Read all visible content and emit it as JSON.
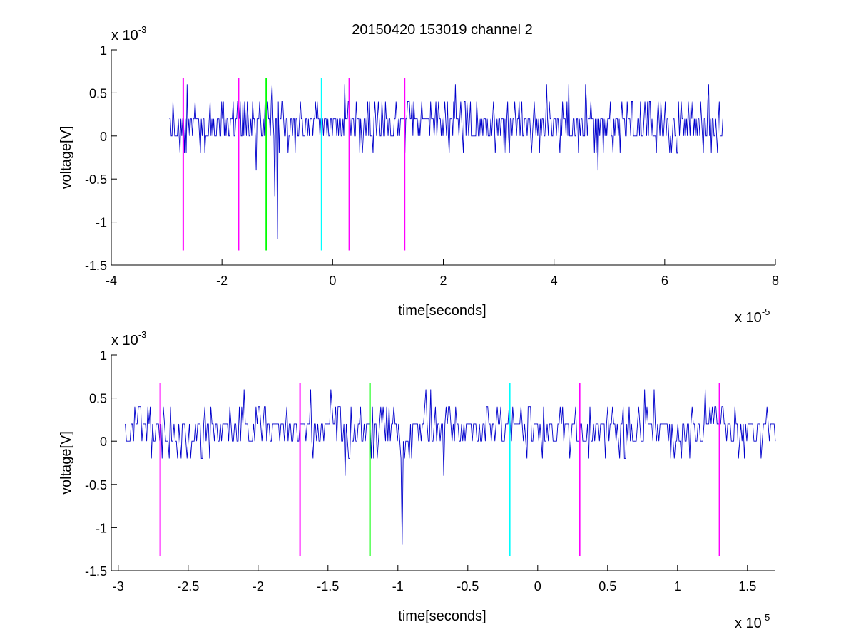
{
  "title": "20150420 153019 channel 2",
  "plots": [
    {
      "id": "top",
      "xlabel": "time[seconds]",
      "ylabel": "voltage[V]",
      "xlim": [
        -4,
        8
      ],
      "ylim": [
        -1.5,
        1
      ],
      "xticks": [
        -4,
        -2,
        0,
        2,
        4,
        6,
        8
      ],
      "xtick_labels": [
        "-4",
        "-2",
        "0",
        "2",
        "4",
        "6",
        "8"
      ],
      "yticks": [
        -1.5,
        -1,
        -0.5,
        0,
        0.5,
        1
      ],
      "ytick_labels": [
        "-1.5",
        "-1",
        "-0.5",
        "0",
        "0.5",
        "1"
      ],
      "x_multiplier": {
        "base": "x 10",
        "power": "-5"
      },
      "y_multiplier": {
        "base": "x 10",
        "power": "-3"
      }
    },
    {
      "id": "bottom",
      "xlabel": "time[seconds]",
      "ylabel": "voltage[V]",
      "xlim": [
        -3.05,
        1.7
      ],
      "ylim": [
        -1.5,
        1
      ],
      "xticks": [
        -3,
        -2.5,
        -2,
        -1.5,
        -1,
        -0.5,
        0,
        0.5,
        1,
        1.5
      ],
      "xtick_labels": [
        "-3",
        "-2.5",
        "-2",
        "-1.5",
        "-1",
        "-0.5",
        "0",
        "0.5",
        "1",
        "1.5"
      ],
      "yticks": [
        -1.5,
        -1,
        -0.5,
        0,
        0.5,
        1
      ],
      "ytick_labels": [
        "-1.5",
        "-1",
        "-0.5",
        "0",
        "0.5",
        "1"
      ],
      "x_multiplier": {
        "base": "x 10",
        "power": "-5"
      },
      "y_multiplier": {
        "base": "x 10",
        "power": "-3"
      }
    }
  ],
  "chart_data": [
    {
      "type": "line",
      "title": "20150420 153019 channel 2",
      "xlabel": "time[seconds]",
      "ylabel": "voltage[V]",
      "x_scale": "x 10^-5",
      "y_scale": "x 10^-3",
      "xlim": [
        -4,
        8
      ],
      "ylim": [
        -1.5,
        1
      ],
      "grid": false,
      "signal": {
        "color": "#0000cc",
        "x_start": -2.95,
        "x_end": 7.05,
        "y_levels": [
          -1.2,
          -0.7,
          -0.4,
          -0.2,
          0,
          0.2,
          0.4,
          0.6
        ],
        "notable_points": [
          {
            "x": -1.0,
            "y": -1.2
          },
          {
            "x": -1.05,
            "y": -0.7
          },
          {
            "x": -1.38,
            "y": -0.4
          },
          {
            "x": 4.8,
            "y": -0.4
          },
          {
            "x": 6.8,
            "y": 0.6
          }
        ]
      },
      "markers": [
        {
          "x": -2.7,
          "y_min": -1.33,
          "y_max": 0.67,
          "color": "#ff00ff"
        },
        {
          "x": -1.7,
          "y_min": -1.33,
          "y_max": 0.67,
          "color": "#ff00ff"
        },
        {
          "x": -1.2,
          "y_min": -1.33,
          "y_max": 0.67,
          "color": "#00ff00"
        },
        {
          "x": -0.2,
          "y_min": -1.33,
          "y_max": 0.67,
          "color": "#00ffff"
        },
        {
          "x": 0.3,
          "y_min": -1.33,
          "y_max": 0.67,
          "color": "#ff00ff"
        },
        {
          "x": 1.3,
          "y_min": -1.33,
          "y_max": 0.67,
          "color": "#ff00ff"
        }
      ]
    },
    {
      "type": "line",
      "title": "",
      "xlabel": "time[seconds]",
      "ylabel": "voltage[V]",
      "x_scale": "x 10^-5",
      "y_scale": "x 10^-3",
      "xlim": [
        -3.05,
        1.7
      ],
      "ylim": [
        -1.5,
        1
      ],
      "grid": false,
      "signal": {
        "color": "#0000cc",
        "x_start": -2.95,
        "x_end": 1.7,
        "y_levels": [
          -1.2,
          -0.7,
          -0.4,
          -0.2,
          0,
          0.2,
          0.4,
          0.6
        ],
        "notable_points": [
          {
            "x": -0.97,
            "y": -1.2
          },
          {
            "x": -1.38,
            "y": -0.4
          },
          {
            "x": -0.67,
            "y": -0.4
          },
          {
            "x": -2.1,
            "y": 0.6
          },
          {
            "x": -0.8,
            "y": 0.6
          },
          {
            "x": 1.2,
            "y": 0.6
          }
        ]
      },
      "markers": [
        {
          "x": -2.7,
          "y_min": -1.33,
          "y_max": 0.67,
          "color": "#ff00ff"
        },
        {
          "x": -1.7,
          "y_min": -1.33,
          "y_max": 0.67,
          "color": "#ff00ff"
        },
        {
          "x": -1.2,
          "y_min": -1.33,
          "y_max": 0.67,
          "color": "#00ff00"
        },
        {
          "x": -0.2,
          "y_min": -1.33,
          "y_max": 0.67,
          "color": "#00ffff"
        },
        {
          "x": 0.3,
          "y_min": -1.33,
          "y_max": 0.67,
          "color": "#ff00ff"
        },
        {
          "x": 1.3,
          "y_min": -1.33,
          "y_max": 0.67,
          "color": "#ff00ff"
        }
      ]
    }
  ]
}
